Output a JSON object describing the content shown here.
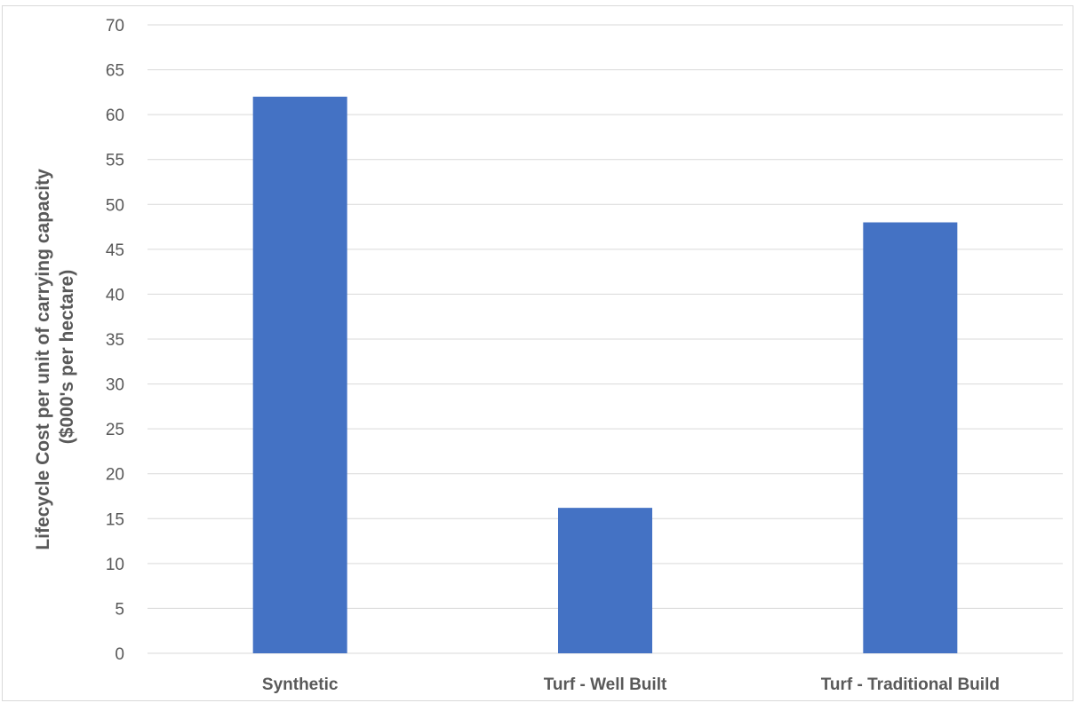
{
  "chart_data": {
    "type": "bar",
    "categories": [
      "Synthetic",
      "Turf - Well Built",
      "Turf - Traditional Build"
    ],
    "values": [
      62,
      16.2,
      48
    ],
    "title": "",
    "xlabel": "",
    "ylabel": "Lifecycle Cost per unit of carrying capacity ($000's per hectare)",
    "ylabel_lines": [
      "Lifecycle Cost per unit of carrying capacity",
      "($000's per hectare)"
    ],
    "ylim": [
      0,
      70
    ],
    "yticks": [
      0,
      5,
      10,
      15,
      20,
      25,
      30,
      35,
      40,
      45,
      50,
      55,
      60,
      65,
      70
    ],
    "grid": true,
    "legend": "none",
    "bar_color": "#4472C4"
  }
}
